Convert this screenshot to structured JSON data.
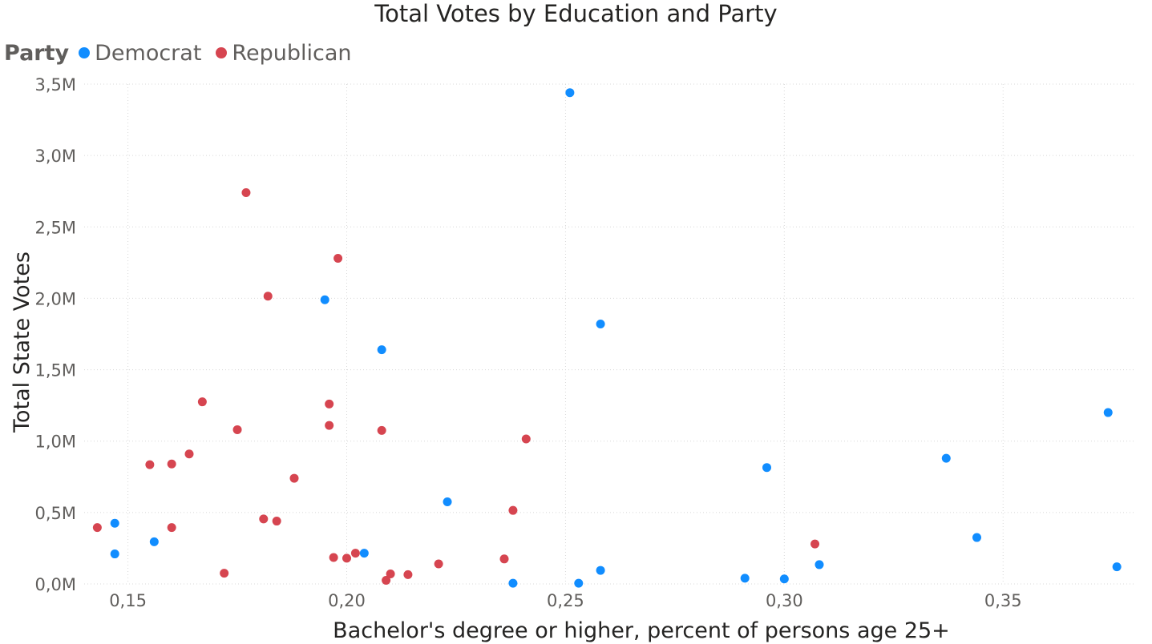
{
  "chart_data": {
    "type": "scatter",
    "title": "Total Votes by Education and Party",
    "xlabel": "Bachelor's degree or higher, percent of persons age 25+",
    "ylabel": "Total State Votes",
    "xlim": [
      0.14,
      0.38
    ],
    "ylim": [
      0,
      3500000
    ],
    "xticks": [
      0.15,
      0.2,
      0.25,
      0.3,
      0.35
    ],
    "xtick_labels": [
      "0,15",
      "0,20",
      "0,25",
      "0,30",
      "0,35"
    ],
    "yticks": [
      0,
      500000,
      1000000,
      1500000,
      2000000,
      2500000,
      3000000,
      3500000
    ],
    "ytick_labels": [
      "0,0M",
      "0,5M",
      "1,0M",
      "1,5M",
      "2,0M",
      "2,5M",
      "3,0M",
      "3,5M"
    ],
    "grid": true,
    "legend": {
      "title": "Party",
      "position": "top-left"
    },
    "series": [
      {
        "name": "Democrat",
        "color": "#118dff",
        "points": [
          {
            "x": 0.147,
            "y": 425000
          },
          {
            "x": 0.147,
            "y": 210000
          },
          {
            "x": 0.156,
            "y": 295000
          },
          {
            "x": 0.195,
            "y": 1990000
          },
          {
            "x": 0.204,
            "y": 215000
          },
          {
            "x": 0.208,
            "y": 1640000
          },
          {
            "x": 0.223,
            "y": 575000
          },
          {
            "x": 0.238,
            "y": 5000
          },
          {
            "x": 0.251,
            "y": 3440000
          },
          {
            "x": 0.253,
            "y": 5000
          },
          {
            "x": 0.258,
            "y": 1820000
          },
          {
            "x": 0.258,
            "y": 95000
          },
          {
            "x": 0.291,
            "y": 40000
          },
          {
            "x": 0.296,
            "y": 815000
          },
          {
            "x": 0.3,
            "y": 35000
          },
          {
            "x": 0.308,
            "y": 135000
          },
          {
            "x": 0.337,
            "y": 880000
          },
          {
            "x": 0.344,
            "y": 325000
          },
          {
            "x": 0.374,
            "y": 1200000
          },
          {
            "x": 0.376,
            "y": 120000
          }
        ]
      },
      {
        "name": "Republican",
        "color": "#d64550",
        "points": [
          {
            "x": 0.143,
            "y": 395000
          },
          {
            "x": 0.155,
            "y": 835000
          },
          {
            "x": 0.16,
            "y": 840000
          },
          {
            "x": 0.16,
            "y": 395000
          },
          {
            "x": 0.164,
            "y": 910000
          },
          {
            "x": 0.167,
            "y": 1275000
          },
          {
            "x": 0.172,
            "y": 75000
          },
          {
            "x": 0.175,
            "y": 1080000
          },
          {
            "x": 0.177,
            "y": 2740000
          },
          {
            "x": 0.181,
            "y": 455000
          },
          {
            "x": 0.182,
            "y": 2015000
          },
          {
            "x": 0.184,
            "y": 440000
          },
          {
            "x": 0.188,
            "y": 740000
          },
          {
            "x": 0.196,
            "y": 1260000
          },
          {
            "x": 0.196,
            "y": 1110000
          },
          {
            "x": 0.197,
            "y": 185000
          },
          {
            "x": 0.198,
            "y": 2280000
          },
          {
            "x": 0.2,
            "y": 180000
          },
          {
            "x": 0.202,
            "y": 215000
          },
          {
            "x": 0.208,
            "y": 1075000
          },
          {
            "x": 0.209,
            "y": 25000
          },
          {
            "x": 0.21,
            "y": 70000
          },
          {
            "x": 0.214,
            "y": 65000
          },
          {
            "x": 0.221,
            "y": 140000
          },
          {
            "x": 0.236,
            "y": 175000
          },
          {
            "x": 0.238,
            "y": 515000
          },
          {
            "x": 0.241,
            "y": 1015000
          },
          {
            "x": 0.307,
            "y": 280000
          }
        ]
      }
    ]
  }
}
